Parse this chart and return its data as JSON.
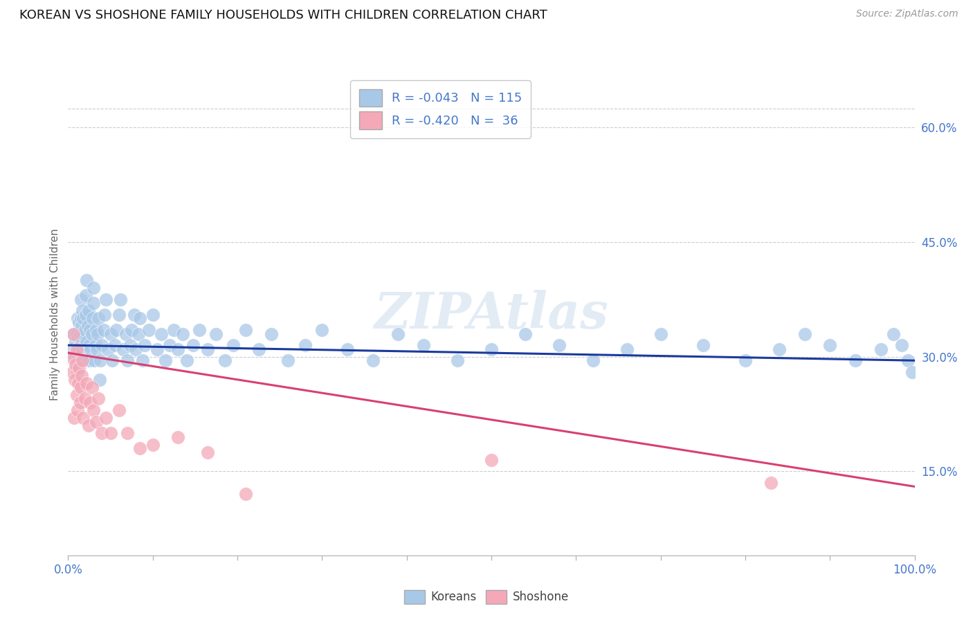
{
  "title": "KOREAN VS SHOSHONE FAMILY HOUSEHOLDS WITH CHILDREN CORRELATION CHART",
  "source": "Source: ZipAtlas.com",
  "ylabel": "Family Households with Children",
  "watermark": "ZIPAtlas",
  "legend_korean_R": "R = -0.043",
  "legend_korean_N": "N = 115",
  "legend_shoshone_R": "R = -0.420",
  "legend_shoshone_N": "N =  36",
  "korean_color": "#A8C8E8",
  "shoshone_color": "#F4A8B8",
  "trend_korean_color": "#1A3A9C",
  "trend_shoshone_color": "#D84070",
  "right_ytick_labels": [
    "15.0%",
    "30.0%",
    "45.0%",
    "60.0%"
  ],
  "right_ytick_values": [
    0.15,
    0.3,
    0.45,
    0.6
  ],
  "xlim": [
    0.0,
    1.0
  ],
  "ylim": [
    0.04,
    0.67
  ],
  "background_color": "#FFFFFF",
  "grid_color": "#CCCCCC",
  "title_fontsize": 13,
  "tick_label_color": "#4477CC",
  "source_color": "#999999",
  "korean_scatter_x": [
    0.005,
    0.007,
    0.008,
    0.009,
    0.01,
    0.01,
    0.01,
    0.011,
    0.011,
    0.012,
    0.012,
    0.013,
    0.013,
    0.014,
    0.014,
    0.015,
    0.015,
    0.015,
    0.016,
    0.016,
    0.017,
    0.017,
    0.018,
    0.018,
    0.019,
    0.02,
    0.02,
    0.021,
    0.021,
    0.022,
    0.022,
    0.023,
    0.024,
    0.025,
    0.025,
    0.026,
    0.027,
    0.028,
    0.029,
    0.03,
    0.03,
    0.031,
    0.032,
    0.033,
    0.034,
    0.035,
    0.036,
    0.037,
    0.038,
    0.04,
    0.042,
    0.043,
    0.045,
    0.047,
    0.05,
    0.052,
    0.055,
    0.057,
    0.06,
    0.062,
    0.065,
    0.068,
    0.07,
    0.073,
    0.075,
    0.078,
    0.08,
    0.083,
    0.085,
    0.088,
    0.09,
    0.095,
    0.1,
    0.105,
    0.11,
    0.115,
    0.12,
    0.125,
    0.13,
    0.135,
    0.14,
    0.148,
    0.155,
    0.165,
    0.175,
    0.185,
    0.195,
    0.21,
    0.225,
    0.24,
    0.26,
    0.28,
    0.3,
    0.33,
    0.36,
    0.39,
    0.42,
    0.46,
    0.5,
    0.54,
    0.58,
    0.62,
    0.66,
    0.7,
    0.75,
    0.8,
    0.84,
    0.87,
    0.9,
    0.93,
    0.96,
    0.975,
    0.985,
    0.992,
    0.997
  ],
  "korean_scatter_y": [
    0.31,
    0.33,
    0.3,
    0.32,
    0.29,
    0.31,
    0.33,
    0.35,
    0.28,
    0.3,
    0.325,
    0.345,
    0.31,
    0.33,
    0.295,
    0.315,
    0.35,
    0.375,
    0.32,
    0.34,
    0.36,
    0.31,
    0.33,
    0.35,
    0.295,
    0.315,
    0.335,
    0.355,
    0.38,
    0.4,
    0.32,
    0.34,
    0.36,
    0.295,
    0.315,
    0.335,
    0.31,
    0.33,
    0.35,
    0.37,
    0.39,
    0.295,
    0.315,
    0.335,
    0.31,
    0.33,
    0.35,
    0.27,
    0.295,
    0.315,
    0.335,
    0.355,
    0.375,
    0.31,
    0.33,
    0.295,
    0.315,
    0.335,
    0.355,
    0.375,
    0.31,
    0.33,
    0.295,
    0.315,
    0.335,
    0.355,
    0.31,
    0.33,
    0.35,
    0.295,
    0.315,
    0.335,
    0.355,
    0.31,
    0.33,
    0.295,
    0.315,
    0.335,
    0.31,
    0.33,
    0.295,
    0.315,
    0.335,
    0.31,
    0.33,
    0.295,
    0.315,
    0.335,
    0.31,
    0.33,
    0.295,
    0.315,
    0.335,
    0.31,
    0.295,
    0.33,
    0.315,
    0.295,
    0.31,
    0.33,
    0.315,
    0.295,
    0.31,
    0.33,
    0.315,
    0.295,
    0.31,
    0.33,
    0.315,
    0.295,
    0.31,
    0.33,
    0.315,
    0.295,
    0.28
  ],
  "shoshone_scatter_x": [
    0.003,
    0.005,
    0.006,
    0.007,
    0.008,
    0.009,
    0.01,
    0.01,
    0.011,
    0.012,
    0.013,
    0.014,
    0.015,
    0.016,
    0.017,
    0.018,
    0.02,
    0.022,
    0.024,
    0.026,
    0.028,
    0.03,
    0.033,
    0.036,
    0.04,
    0.045,
    0.05,
    0.06,
    0.07,
    0.085,
    0.1,
    0.13,
    0.165,
    0.21,
    0.5,
    0.83
  ],
  "shoshone_scatter_y": [
    0.3,
    0.28,
    0.33,
    0.22,
    0.27,
    0.29,
    0.25,
    0.31,
    0.23,
    0.265,
    0.285,
    0.24,
    0.26,
    0.275,
    0.295,
    0.22,
    0.245,
    0.265,
    0.21,
    0.24,
    0.26,
    0.23,
    0.215,
    0.245,
    0.2,
    0.22,
    0.2,
    0.23,
    0.2,
    0.18,
    0.185,
    0.195,
    0.175,
    0.12,
    0.165,
    0.135
  ],
  "korean_trend_x": [
    0.0,
    1.0
  ],
  "korean_trend_y": [
    0.315,
    0.295
  ],
  "shoshone_trend_x": [
    0.0,
    1.0
  ],
  "shoshone_trend_y": [
    0.305,
    0.13
  ]
}
